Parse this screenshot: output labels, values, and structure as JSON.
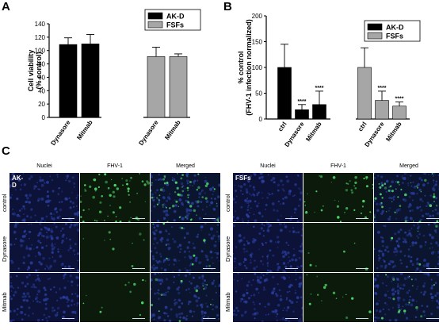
{
  "panels": {
    "a": "A",
    "b": "B",
    "c": "C"
  },
  "chart_data": [
    {
      "type": "bar",
      "ylabel": "Cell viability\n(% control)",
      "ylim": [
        0,
        140
      ],
      "yticks": [
        0,
        20,
        40,
        60,
        80,
        100,
        120,
        140
      ],
      "categories": [
        "Dynasore",
        "Mitmab",
        "Dynasore",
        "Mitmab"
      ],
      "groups": [
        "AK-D",
        "AK-D",
        "FSFs",
        "FSFs"
      ],
      "values": [
        109,
        110,
        91,
        91
      ],
      "errors": [
        10,
        14,
        14,
        4
      ],
      "legend": [
        "AK-D",
        "FSFs"
      ],
      "legend_position": "top-right",
      "colors": {
        "AK-D": "#000000",
        "FSFs": "#a6a6a6"
      }
    },
    {
      "type": "bar",
      "ylabel": "% control\n(FHV-1 infection normalized)",
      "ylim": [
        0,
        200
      ],
      "yticks": [
        0,
        50,
        100,
        150,
        200
      ],
      "categories": [
        "ctrl",
        "Dynasore",
        "Mitmab",
        "ctrl",
        "Dynasore",
        "Mitmab"
      ],
      "groups": [
        "AK-D",
        "AK-D",
        "AK-D",
        "FSFs",
        "FSFs",
        "FSFs"
      ],
      "values": [
        100,
        18,
        28,
        100,
        36,
        25
      ],
      "errors": [
        45,
        10,
        26,
        38,
        18,
        8
      ],
      "annotations": [
        "",
        "****",
        "****",
        "",
        "****",
        "****"
      ],
      "legend": [
        "AK-D",
        "FSFs"
      ],
      "legend_position": "top-right",
      "colors": {
        "AK-D": "#000000",
        "FSFs": "#a6a6a6"
      }
    }
  ],
  "micrographs": {
    "columns": [
      "Nuclei",
      "FHV-1",
      "Merged"
    ],
    "rows": [
      "control",
      "Dynasore",
      "Mitmab"
    ],
    "blocks": [
      {
        "label": "AK-D"
      },
      {
        "label": "FSFs"
      }
    ]
  }
}
